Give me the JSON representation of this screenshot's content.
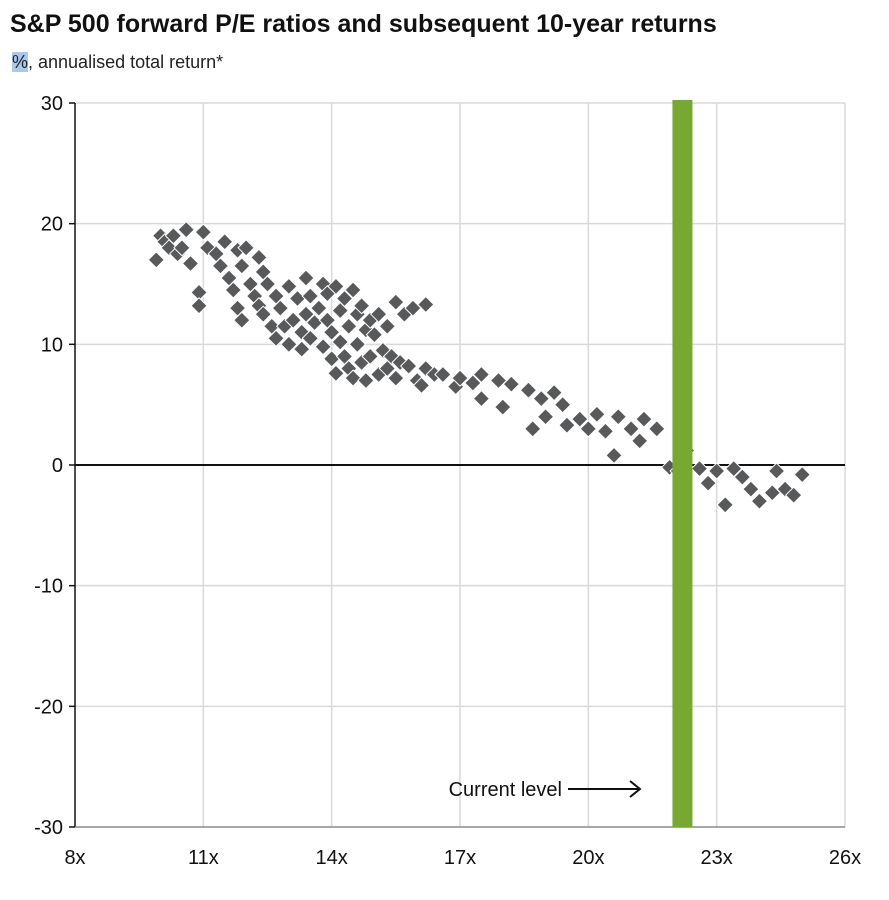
{
  "chart_data": {
    "type": "scatter",
    "title": "S&P 500 forward P/E ratios and subsequent 10-year returns",
    "subtitle_unit": "%",
    "subtitle_rest": ", annualised total return*",
    "xlabel": "",
    "ylabel": "",
    "xlim": [
      8,
      26
    ],
    "ylim": [
      -30,
      30
    ],
    "x_ticks": [
      8,
      11,
      14,
      17,
      20,
      23,
      26
    ],
    "x_tick_labels": [
      "8x",
      "11x",
      "14x",
      "17x",
      "20x",
      "23x",
      "26x"
    ],
    "y_ticks": [
      30,
      20,
      10,
      0,
      -10,
      -20,
      -30
    ],
    "y_tick_labels": [
      "30",
      "20",
      "10",
      "0",
      "-10",
      "-20",
      "-30"
    ],
    "grid": true,
    "current_level": 22.2,
    "annotation": "Current level",
    "colors": {
      "points": "#58595b",
      "current_bar": "#76a832",
      "grid": "#d9d9d9",
      "axis": "#111111"
    },
    "series": [
      {
        "points": [
          [
            9.9,
            17.0
          ],
          [
            10.0,
            19.0
          ],
          [
            10.1,
            18.5
          ],
          [
            10.2,
            18.0
          ],
          [
            10.3,
            19.0
          ],
          [
            10.4,
            17.5
          ],
          [
            10.5,
            18.0
          ],
          [
            10.6,
            19.5
          ],
          [
            10.7,
            16.7
          ],
          [
            10.9,
            14.3
          ],
          [
            10.9,
            13.2
          ],
          [
            11.0,
            19.3
          ],
          [
            11.1,
            18.0
          ],
          [
            11.3,
            17.5
          ],
          [
            11.4,
            16.5
          ],
          [
            11.5,
            18.5
          ],
          [
            11.6,
            15.5
          ],
          [
            11.7,
            14.5
          ],
          [
            11.8,
            17.8
          ],
          [
            11.8,
            13.0
          ],
          [
            11.9,
            16.5
          ],
          [
            11.9,
            12.0
          ],
          [
            12.0,
            18.0
          ],
          [
            12.1,
            15.0
          ],
          [
            12.2,
            14.0
          ],
          [
            12.3,
            17.2
          ],
          [
            12.3,
            13.2
          ],
          [
            12.4,
            16.0
          ],
          [
            12.4,
            12.5
          ],
          [
            12.5,
            15.0
          ],
          [
            12.6,
            11.5
          ],
          [
            12.7,
            14.0
          ],
          [
            12.7,
            10.5
          ],
          [
            12.8,
            13.0
          ],
          [
            12.9,
            11.5
          ],
          [
            13.0,
            14.8
          ],
          [
            13.0,
            10.0
          ],
          [
            13.1,
            12.0
          ],
          [
            13.2,
            13.8
          ],
          [
            13.3,
            11.0
          ],
          [
            13.3,
            9.6
          ],
          [
            13.4,
            15.5
          ],
          [
            13.4,
            12.5
          ],
          [
            13.5,
            14.0
          ],
          [
            13.5,
            10.5
          ],
          [
            13.6,
            11.8
          ],
          [
            13.7,
            13.0
          ],
          [
            13.8,
            9.8
          ],
          [
            13.8,
            15.0
          ],
          [
            13.9,
            14.2
          ],
          [
            13.9,
            12.0
          ],
          [
            14.0,
            11.0
          ],
          [
            14.0,
            8.8
          ],
          [
            14.1,
            14.8
          ],
          [
            14.1,
            7.6
          ],
          [
            14.2,
            12.8
          ],
          [
            14.2,
            10.2
          ],
          [
            14.3,
            13.8
          ],
          [
            14.3,
            9.0
          ],
          [
            14.4,
            11.5
          ],
          [
            14.4,
            8.0
          ],
          [
            14.5,
            14.5
          ],
          [
            14.5,
            7.2
          ],
          [
            14.6,
            12.5
          ],
          [
            14.6,
            10.0
          ],
          [
            14.7,
            13.2
          ],
          [
            14.7,
            8.5
          ],
          [
            14.8,
            11.2
          ],
          [
            14.8,
            7.0
          ],
          [
            14.9,
            12.0
          ],
          [
            14.9,
            9.0
          ],
          [
            15.0,
            10.8
          ],
          [
            15.1,
            12.5
          ],
          [
            15.1,
            7.5
          ],
          [
            15.2,
            9.5
          ],
          [
            15.3,
            11.5
          ],
          [
            15.3,
            8.0
          ],
          [
            15.4,
            9.0
          ],
          [
            15.5,
            13.5
          ],
          [
            15.5,
            7.2
          ],
          [
            15.6,
            8.5
          ],
          [
            15.7,
            12.5
          ],
          [
            15.8,
            8.2
          ],
          [
            15.9,
            13.0
          ],
          [
            16.0,
            7.0
          ],
          [
            16.1,
            6.6
          ],
          [
            16.2,
            8.0
          ],
          [
            16.2,
            13.3
          ],
          [
            16.4,
            7.5
          ],
          [
            16.6,
            7.5
          ],
          [
            16.9,
            6.5
          ],
          [
            17.0,
            7.2
          ],
          [
            17.3,
            6.8
          ],
          [
            17.5,
            7.5
          ],
          [
            17.5,
            5.5
          ],
          [
            17.9,
            7.0
          ],
          [
            18.0,
            4.8
          ],
          [
            18.2,
            6.7
          ],
          [
            18.6,
            6.2
          ],
          [
            18.7,
            3.0
          ],
          [
            18.9,
            5.5
          ],
          [
            19.0,
            4.0
          ],
          [
            19.2,
            6.0
          ],
          [
            19.4,
            5.0
          ],
          [
            19.5,
            3.3
          ],
          [
            19.8,
            3.8
          ],
          [
            20.0,
            3.0
          ],
          [
            20.2,
            4.2
          ],
          [
            20.4,
            2.8
          ],
          [
            20.6,
            0.8
          ],
          [
            20.7,
            4.0
          ],
          [
            21.0,
            3.0
          ],
          [
            21.2,
            2.0
          ],
          [
            21.3,
            3.8
          ],
          [
            21.6,
            3.0
          ],
          [
            21.9,
            -0.2
          ],
          [
            22.1,
            -0.5
          ],
          [
            22.3,
            1.2
          ],
          [
            22.6,
            -0.3
          ],
          [
            22.8,
            -1.5
          ],
          [
            23.0,
            -0.5
          ],
          [
            23.2,
            -3.3
          ],
          [
            23.4,
            -0.3
          ],
          [
            23.6,
            -1.0
          ],
          [
            23.8,
            -2.0
          ],
          [
            24.0,
            -3.0
          ],
          [
            24.3,
            -2.3
          ],
          [
            24.4,
            -0.5
          ],
          [
            24.6,
            -2.0
          ],
          [
            24.8,
            -2.5
          ],
          [
            25.0,
            -0.8
          ]
        ]
      }
    ]
  }
}
